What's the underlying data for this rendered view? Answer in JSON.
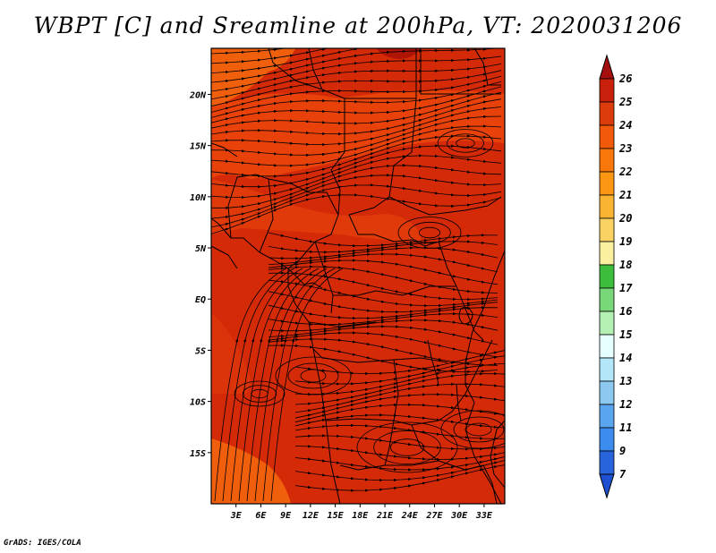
{
  "title": "WBPT [C] and Sreamline at 200hPa, VT: 2020031206",
  "footer": "GrADS: IGES/COLA",
  "map": {
    "lon_range": [
      0,
      35.5
    ],
    "lat_range": [
      -20,
      24.5
    ],
    "y_ticks": [
      {
        "lat": 20,
        "label": "20N"
      },
      {
        "lat": 15,
        "label": "15N"
      },
      {
        "lat": 10,
        "label": "10N"
      },
      {
        "lat": 5,
        "label": "5N"
      },
      {
        "lat": 0,
        "label": "EQ"
      },
      {
        "lat": -5,
        "label": "5S"
      },
      {
        "lat": -10,
        "label": "10S"
      },
      {
        "lat": -15,
        "label": "15S"
      }
    ],
    "x_ticks": [
      {
        "lon": 3,
        "label": "3E"
      },
      {
        "lon": 6,
        "label": "6E"
      },
      {
        "lon": 9,
        "label": "9E"
      },
      {
        "lon": 12,
        "label": "12E"
      },
      {
        "lon": 15,
        "label": "15E"
      },
      {
        "lon": 18,
        "label": "18E"
      },
      {
        "lon": 21,
        "label": "21E"
      },
      {
        "lon": 24,
        "label": "24E"
      },
      {
        "lon": 27,
        "label": "27E"
      },
      {
        "lon": 30,
        "label": "30E"
      },
      {
        "lon": 33,
        "label": "33E"
      }
    ],
    "field_colors": {
      "band_24_25": "#d42a08",
      "band_23_24": "#e8420a",
      "band_22_23": "#f0600c",
      "band_25_26": "#b01404"
    },
    "streamline_color": "#000000"
  },
  "colorbar": {
    "labels": [
      "26",
      "25",
      "24",
      "23",
      "22",
      "21",
      "20",
      "19",
      "18",
      "17",
      "16",
      "15",
      "14",
      "13",
      "12",
      "11",
      "9",
      "7"
    ],
    "colors": [
      "#a50f0f",
      "#c8200a",
      "#dc3c0c",
      "#f05a0a",
      "#fa780a",
      "#fa9614",
      "#fab432",
      "#fad264",
      "#faf0a0",
      "#3cbe3c",
      "#78d778",
      "#b4f0b4",
      "#e6ffff",
      "#b4e6fa",
      "#8cc8f0",
      "#5aa5f0",
      "#3c8cf0",
      "#2864dc",
      "#1e50d2"
    ]
  }
}
